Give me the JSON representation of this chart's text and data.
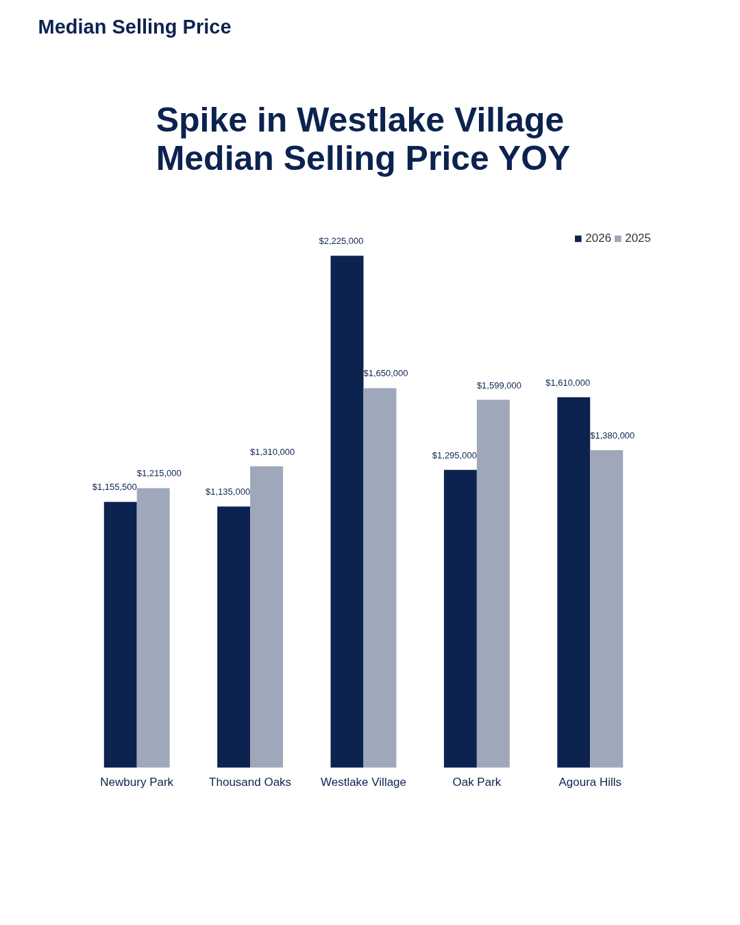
{
  "chart_data": {
    "type": "bar",
    "subtitle": "Median Selling Price",
    "title": "Spike in Westlake Village\nMedian Selling Price YOY",
    "categories": [
      "Newbury Park",
      "Thousand Oaks",
      "Westlake Village",
      "Oak Park",
      "Agoura Hills"
    ],
    "series": [
      {
        "name": "2026",
        "color": "#0c2350",
        "values": [
          1155500,
          1135000,
          2225000,
          1295000,
          1610000
        ],
        "value_labels": [
          "$1,155,500",
          "$1,135,000",
          "$2,225,000",
          "$1,295,000",
          "$1,610,000"
        ]
      },
      {
        "name": "2025",
        "color": "#9fa8ba",
        "values": [
          1215000,
          1310000,
          1650000,
          1599000,
          1380000
        ],
        "value_labels": [
          "$1,215,000",
          "$1,310,000",
          "$1,650,000",
          "$1,599,000",
          "$1,380,000"
        ]
      }
    ],
    "legend": "top right",
    "grid": false
  }
}
